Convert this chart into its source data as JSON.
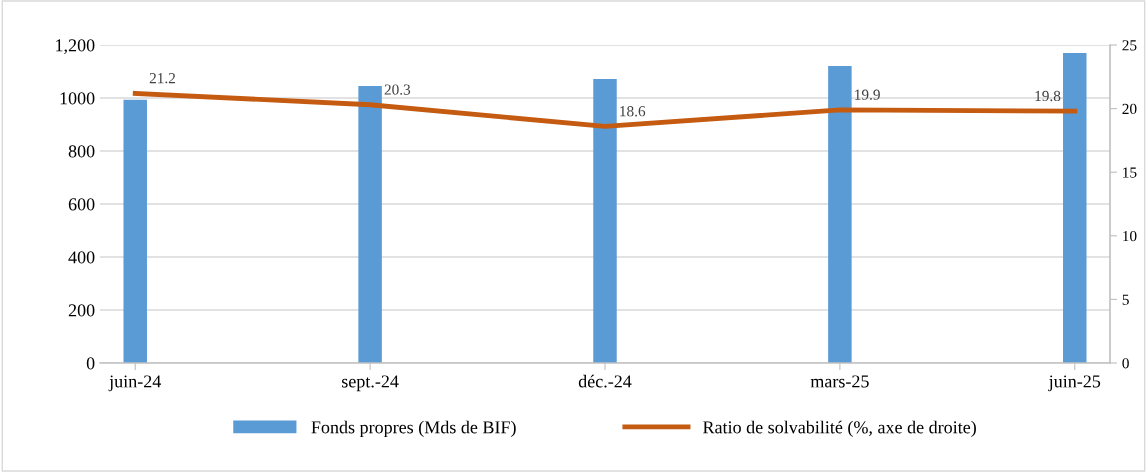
{
  "chart_data": {
    "type": "bar",
    "categories": [
      "juin-24",
      "sept.-24",
      "déc.-24",
      "mars-25",
      "juin-25"
    ],
    "series": [
      {
        "name": "Fonds propres (Mds de BIF)",
        "color": "#5b9bd5",
        "values": [
          993,
          1045,
          1072,
          1121,
          1170
        ]
      },
      {
        "name": "Ratio de solvabilité (%, axe de droite)",
        "type": "line",
        "axis": "y2",
        "color": "#c55a11",
        "values": [
          21.2,
          20.3,
          18.6,
          19.9,
          19.8
        ],
        "value_labels": [
          "21.2",
          "20.3",
          "18.6",
          "19.9",
          "19.8"
        ]
      }
    ],
    "ylim": [
      0,
      1200
    ],
    "yticks": [
      0,
      200,
      400,
      600,
      800,
      1000,
      {
        "value": 1200,
        "label": "1,200"
      }
    ],
    "y2lim": [
      0,
      25
    ],
    "y2ticks": [
      0,
      5,
      10,
      15,
      20,
      25
    ],
    "grid": "y",
    "legend": "bottom",
    "marker": "none",
    "line_style": "solid"
  }
}
